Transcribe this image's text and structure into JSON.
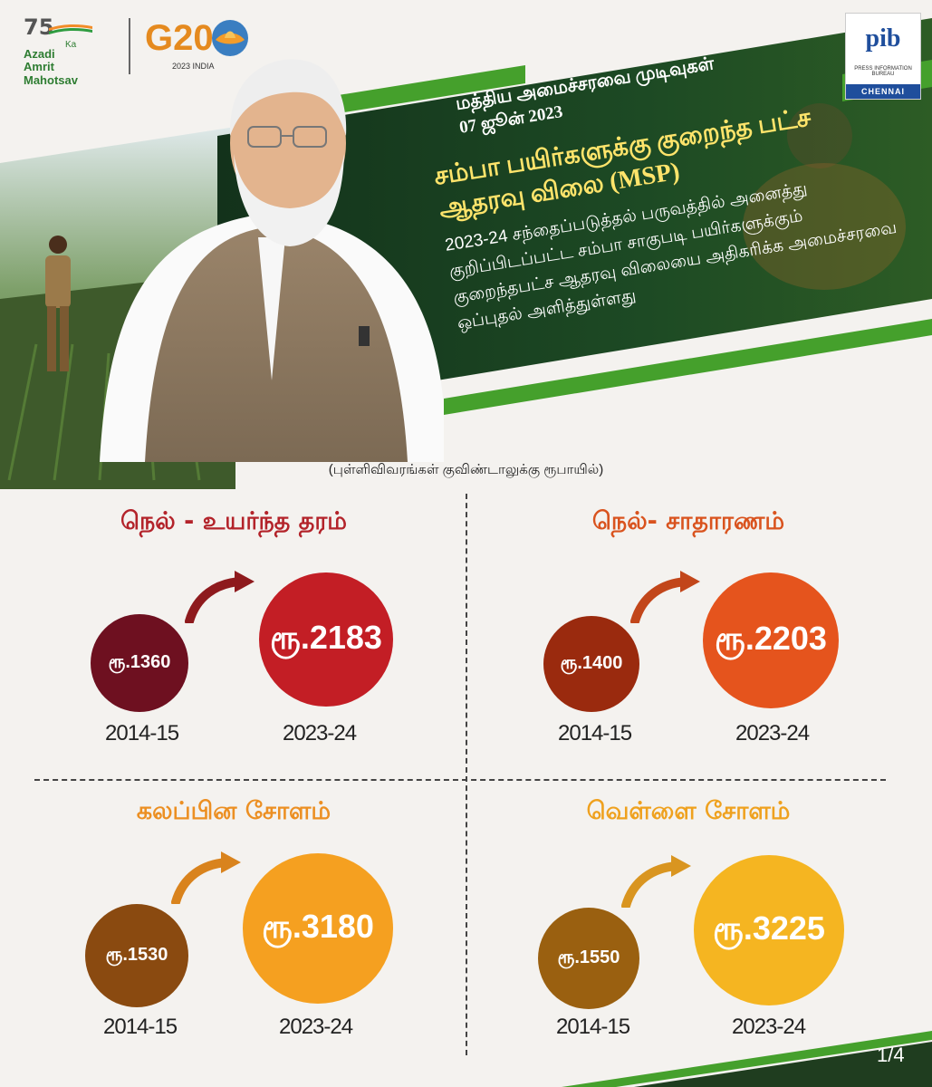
{
  "header": {
    "azadi_number": "75",
    "azadi_line1": "Azadi",
    "azadi_ka": "Ka",
    "azadi_line2": "Amrit Mahotsav",
    "g20_text": "G20",
    "g20_sub": "2023 INDIA",
    "pib_logo": "pib",
    "pib_subtitle": "PRESS INFORMATION BUREAU",
    "pib_city": "CHENNAI"
  },
  "banner": {
    "line1": "மத்திய அமைச்சரவை முடிவுகள்",
    "date": "07 ஜூன் 2023",
    "headline": "சம்பா பயிர்களுக்கு குறைந்த பட்ச ஆதரவு விலை (MSP)",
    "body": "2023-24 சந்தைப்படுத்தல் பருவத்தில் அனைத்து குறிப்பிடப்பட்ட சம்பா சாகுபடி பயிர்களுக்கும் குறைந்தபட்ச ஆதரவு விலையை அதிகரிக்க அமைச்சரவை ஒப்புதல் அளித்துள்ளது"
  },
  "unit_note": "(புள்ளிவிவரங்கள் குவிண்டாலுக்கு ரூபாயில்)",
  "crops": [
    {
      "title": "நெல் - உயர்ந்த தரம்",
      "old_price": "ரூ.1360",
      "new_price": "ரூ.2183",
      "old_year": "2014-15",
      "new_year": "2023-24",
      "title_color": "#b3232a",
      "old_color": "#6e1020",
      "new_color": "#c31e25",
      "arrow_color": "#8e1a1d"
    },
    {
      "title": "நெல்- சாதாரணம்",
      "old_price": "ரூ.1400",
      "new_price": "ரூ.2203",
      "old_year": "2014-15",
      "new_year": "2023-24",
      "title_color": "#d9531e",
      "old_color": "#9a2a0e",
      "new_color": "#e5541d",
      "arrow_color": "#c2461a"
    },
    {
      "title": "கலப்பின சோளம்",
      "old_price": "ரூ.1530",
      "new_price": "ரூ.3180",
      "old_year": "2014-15",
      "new_year": "2023-24",
      "title_color": "#ec8f22",
      "old_color": "#8a4a10",
      "new_color": "#f5a020",
      "arrow_color": "#d9831d"
    },
    {
      "title": "வெள்ளை சோளம்",
      "old_price": "ரூ.1550",
      "new_price": "ரூ.3225",
      "old_year": "2014-15",
      "new_year": "2023-24",
      "title_color": "#efa11e",
      "old_color": "#9a6010",
      "new_color": "#f5b521",
      "arrow_color": "#d99520"
    }
  ],
  "page_number": "1/4"
}
